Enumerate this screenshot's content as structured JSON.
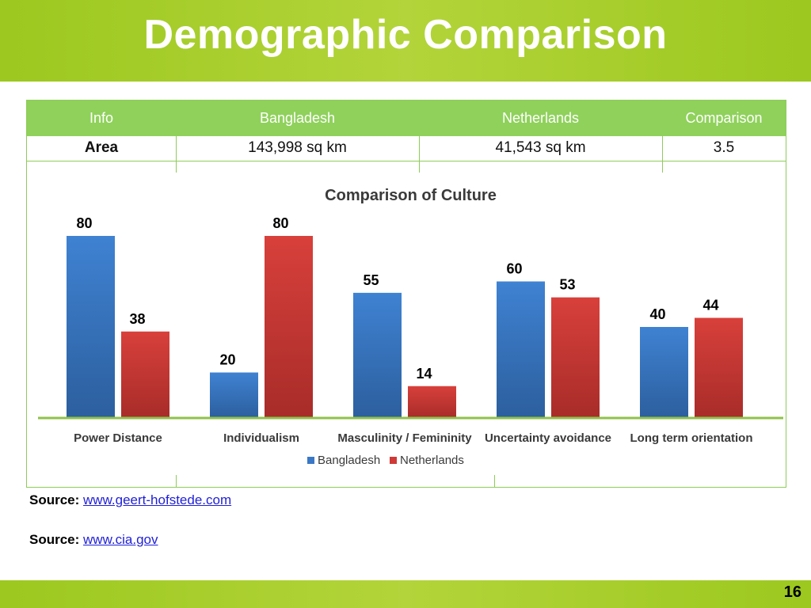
{
  "title": "Demographic Comparison",
  "table": {
    "headers": [
      "Info",
      "Bangladesh",
      "Netherlands",
      "Comparison"
    ],
    "rows": [
      {
        "label": "Area",
        "bangladesh": "143,998 sq km",
        "netherlands": "41,543 sq km",
        "comparison": "3.5"
      }
    ]
  },
  "sources": [
    {
      "label": "Source:",
      "link": "www.geert-hofstede.com"
    },
    {
      "label": "Source:",
      "link": "www.cia.gov"
    }
  ],
  "page_number": "16",
  "colors": {
    "bangladesh": "#3a78c6",
    "netherlands": "#cf3a36",
    "accent": "#a6cc2a",
    "header_green": "#8fd15b"
  },
  "chart_data": {
    "type": "bar",
    "title": "Comparison of Culture",
    "categories": [
      "Power Distance",
      "Individualism",
      "Masculinity / Femininity",
      "Uncertainty avoidance",
      "Long term orientation"
    ],
    "series": [
      {
        "name": "Bangladesh",
        "values": [
          80,
          20,
          55,
          60,
          40
        ]
      },
      {
        "name": "Netherlands",
        "values": [
          38,
          80,
          14,
          53,
          44
        ]
      }
    ],
    "ylim": [
      0,
      80
    ],
    "legend": "bottom",
    "grid": false,
    "xlabel": "",
    "ylabel": ""
  }
}
